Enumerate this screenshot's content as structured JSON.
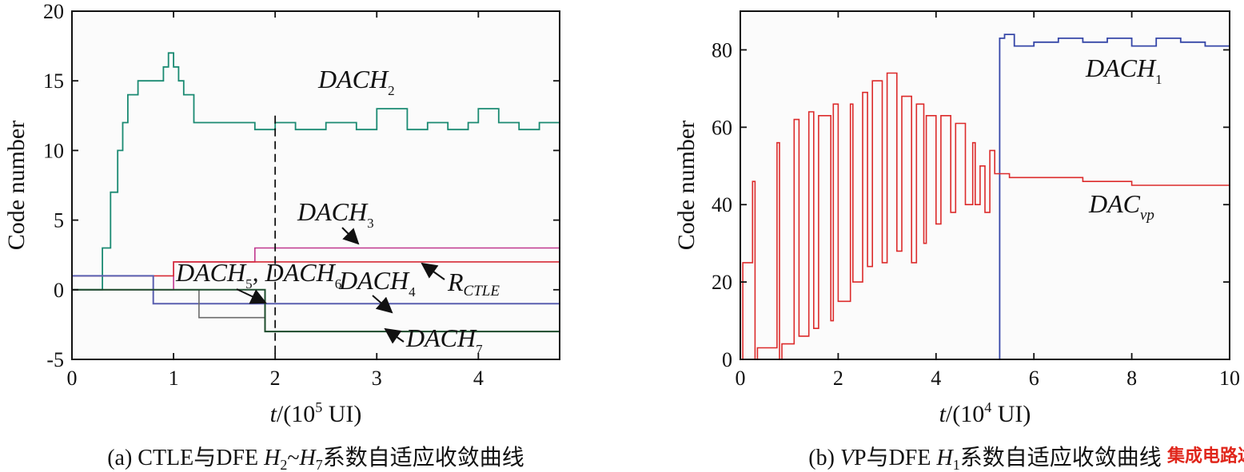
{
  "chart_data": [
    {
      "type": "line",
      "caption": "(a) CTLE与DFE H2~H7系数自适应收敛曲线",
      "ylabel": "Code number",
      "xlabel": "t/(10^5 UI)",
      "xlim": [
        0,
        4.8
      ],
      "ylim": [
        -5,
        20
      ],
      "xticks": [
        "0",
        "1",
        "2",
        "3",
        "4"
      ],
      "yticks": [
        "-5",
        "0",
        "5",
        "10",
        "15",
        "20"
      ],
      "dashed_marker_x": 2.0,
      "colors": {
        "H2": "#1a8a72",
        "H3": "#c0388f",
        "RCTLE": "#d62b36",
        "H4": "#5a5fb0",
        "H5H6": "#6b6b6b",
        "H7": "#1f4d2e"
      },
      "annotations": [
        {
          "base": "DAC",
          "sub": "H",
          "subsub": "2"
        },
        {
          "base": "DAC",
          "sub": "H",
          "subsub": "3"
        },
        {
          "base": "R",
          "sub": "CTLE",
          "subsub": ""
        },
        {
          "base": "DAC",
          "sub": "H",
          "subsub": "4"
        },
        {
          "base": "DAC",
          "sub": "H",
          "subsub": "5"
        },
        {
          "base": "DAC",
          "sub": "H",
          "subsub": "6"
        },
        {
          "base": "DAC",
          "sub": "H",
          "subsub": "7"
        }
      ],
      "series": [
        {
          "name": "DAC_H2",
          "x": [
            0,
            0.25,
            0.3,
            0.38,
            0.45,
            0.5,
            0.55,
            0.65,
            0.75,
            0.9,
            0.95,
            1.0,
            1.05,
            1.1,
            1.2,
            1.5,
            1.8,
            2.0,
            2.2,
            2.5,
            2.8,
            3.0,
            3.3,
            3.5,
            3.7,
            3.9,
            4.0,
            4.2,
            4.4,
            4.6,
            4.8
          ],
          "y": [
            0,
            0,
            3,
            7,
            10,
            12,
            14,
            15,
            15,
            16,
            17,
            16,
            15,
            14,
            12,
            12,
            11.5,
            12,
            11.5,
            12,
            11.5,
            13,
            11.5,
            12,
            11.5,
            12,
            13,
            12,
            11.5,
            12,
            12.5
          ]
        },
        {
          "name": "DAC_H3",
          "x": [
            0,
            0.95,
            1.0,
            1.75,
            1.8,
            4.8
          ],
          "y": [
            0,
            0,
            2,
            2,
            3,
            3
          ]
        },
        {
          "name": "R_CTLE",
          "x": [
            0,
            0.9,
            1.0,
            4.8
          ],
          "y": [
            1,
            1,
            2,
            2
          ]
        },
        {
          "name": "DAC_H4",
          "x": [
            0,
            0.75,
            0.8,
            4.8
          ],
          "y": [
            1,
            1,
            -1,
            -1
          ]
        },
        {
          "name": "DAC_H5, DAC_H6",
          "x": [
            0,
            1.2,
            1.25,
            1.85,
            1.9,
            4.8
          ],
          "y": [
            0,
            0,
            -2,
            -2,
            -3,
            -3
          ]
        },
        {
          "name": "DAC_H7",
          "x": [
            0,
            1.85,
            1.9,
            4.8
          ],
          "y": [
            0,
            0,
            -3,
            -3
          ]
        }
      ]
    },
    {
      "type": "line",
      "caption": "(b) VP与DFE H1系数自适应收敛曲线",
      "ylabel": "Code number",
      "xlabel": "t/(10^4 UI)",
      "xlim": [
        0,
        10
      ],
      "ylim": [
        0,
        90
      ],
      "xticks": [
        "0",
        "2",
        "4",
        "6",
        "8",
        "10"
      ],
      "yticks": [
        "0",
        "20",
        "40",
        "60",
        "80"
      ],
      "colors": {
        "H1": "#3647a8",
        "VP": "#dc2b2b"
      },
      "annotations": [
        {
          "base": "DAC",
          "sub": "H",
          "subsub": "1"
        },
        {
          "base": "DAC",
          "sub": "vp",
          "subsub": ""
        }
      ],
      "series": [
        {
          "name": "DAC_H1",
          "x": [
            0,
            0.1,
            5.3,
            5.4,
            5.6,
            6.0,
            6.5,
            7.0,
            7.5,
            8.0,
            8.5,
            9.0,
            9.5,
            10.0
          ],
          "y": [
            0,
            0,
            83,
            84,
            81,
            82,
            83,
            82,
            83,
            81,
            83,
            82,
            81,
            81
          ]
        },
        {
          "name": "DAC_vp",
          "x": [
            0,
            0.05,
            0.25,
            0.3,
            0.35,
            0.75,
            0.8,
            0.85,
            1.1,
            1.2,
            1.4,
            1.5,
            1.6,
            1.85,
            1.9,
            2.0,
            2.25,
            2.3,
            2.5,
            2.6,
            2.7,
            2.9,
            3.0,
            3.2,
            3.3,
            3.5,
            3.6,
            3.75,
            3.8,
            4.0,
            4.1,
            4.3,
            4.4,
            4.6,
            4.75,
            4.8,
            4.9,
            5.0,
            5.1,
            5.2,
            5.5,
            6.0,
            7.0,
            8.0,
            9.0,
            10.0
          ],
          "y": [
            0,
            25,
            46,
            0,
            3,
            56,
            0,
            4,
            62,
            6,
            64,
            8,
            63,
            10,
            66,
            15,
            66,
            20,
            69,
            24,
            72,
            25,
            74,
            28,
            68,
            25,
            66,
            30,
            63,
            35,
            63,
            38,
            61,
            40,
            56,
            40,
            50,
            38,
            54,
            48,
            47,
            47,
            46,
            45,
            45,
            44
          ]
        }
      ]
    }
  ],
  "watermark": "集成电路达信"
}
